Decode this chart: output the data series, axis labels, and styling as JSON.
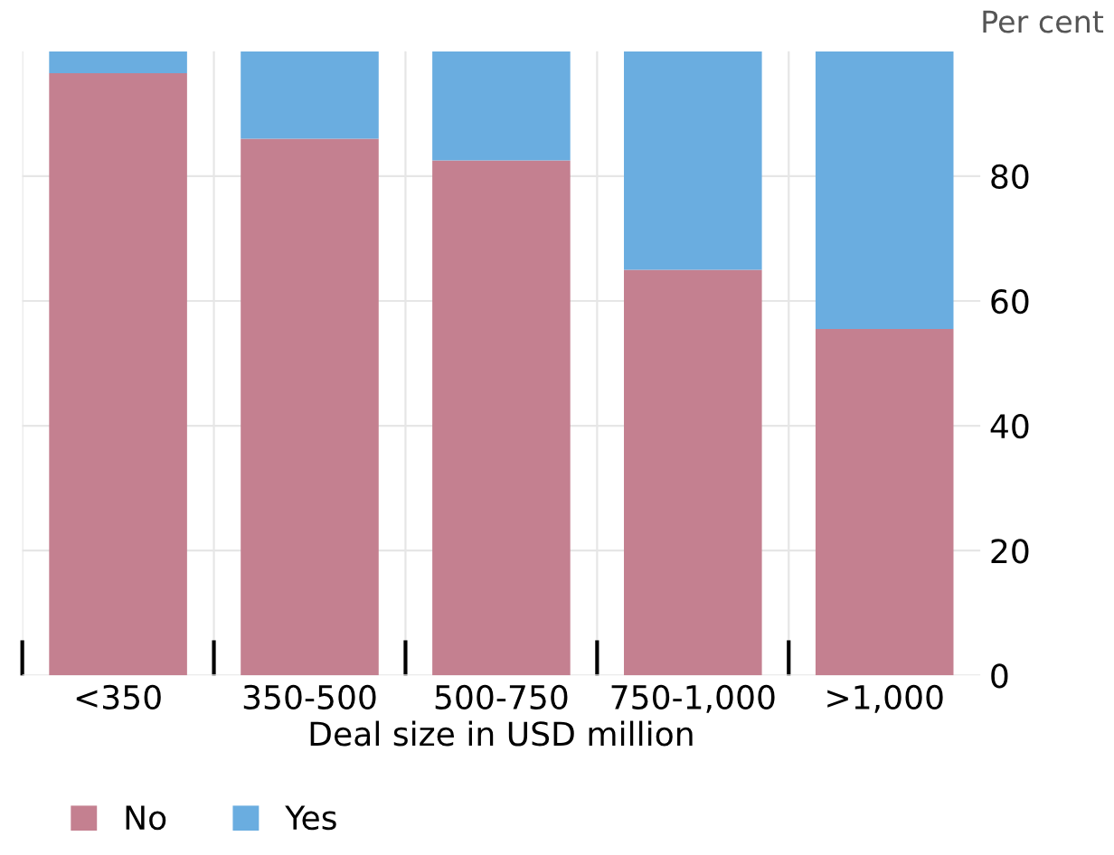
{
  "chart_data": {
    "type": "bar",
    "stacked": true,
    "xlabel": "Deal size in USD million",
    "ylabel": "Per cent",
    "categories": [
      "<350",
      "350-500",
      "500-750",
      "750-1,000",
      ">1,000"
    ],
    "series": [
      {
        "name": "No",
        "color": "#c48090",
        "values": [
          96.5,
          86,
          82.5,
          65,
          55.5
        ]
      },
      {
        "name": "Yes",
        "color": "#6aade0",
        "values": [
          3.5,
          14,
          17.5,
          35,
          44.5
        ]
      }
    ],
    "ylim": [
      0,
      100
    ],
    "yticks": [
      0,
      20,
      40,
      60,
      80
    ],
    "grid": true,
    "legend": "bottom left"
  }
}
